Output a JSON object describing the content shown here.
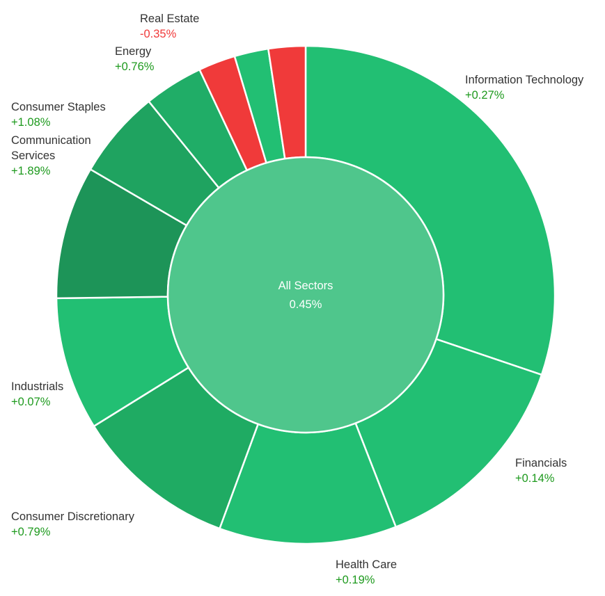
{
  "chart_data": {
    "type": "pie",
    "variant": "sunburst",
    "center": {
      "label": "All Sectors",
      "value": "0.45%"
    },
    "legend": "none",
    "colors": {
      "positive_text": "#1e9a1e",
      "negative_text": "#f03a3a",
      "center_fill": "#4fc68c",
      "border": "#ffffff"
    },
    "sectors": [
      {
        "name": "Information Technology",
        "change": "+0.27%",
        "share": 31.5,
        "color": "#22bf73",
        "labeled": true
      },
      {
        "name": "Financials",
        "change": "+0.14%",
        "share": 14.5,
        "color": "#22bf73",
        "labeled": true
      },
      {
        "name": "Health Care",
        "change": "+0.19%",
        "share": 12.0,
        "color": "#22bf73",
        "labeled": true
      },
      {
        "name": "Consumer Discretionary",
        "change": "+0.79%",
        "share": 11.0,
        "color": "#1fab63",
        "labeled": true
      },
      {
        "name": "Industrials",
        "change": "+0.07%",
        "share": 9.0,
        "color": "#22bf73",
        "labeled": true
      },
      {
        "name": "",
        "change": "",
        "share": 9.0,
        "color": "#1d9458",
        "labeled": false
      },
      {
        "name": "Communication Services",
        "change": "+1.89%",
        "share": 6.0,
        "color": "#1fa360",
        "labeled": true
      },
      {
        "name": "Consumer Staples",
        "change": "+1.08%",
        "share": 4.0,
        "color": "#20ad67",
        "labeled": true
      },
      {
        "name": "Energy",
        "change": "+0.76%",
        "share": 2.5,
        "color": "#f03a3a",
        "labeled": true
      },
      {
        "name": "",
        "change": "",
        "share": 2.3,
        "color": "#22bf73",
        "labeled": false
      },
      {
        "name": "Real Estate",
        "change": "-0.35%",
        "share": 2.5,
        "color": "#f03a3a",
        "labeled": true
      }
    ]
  }
}
